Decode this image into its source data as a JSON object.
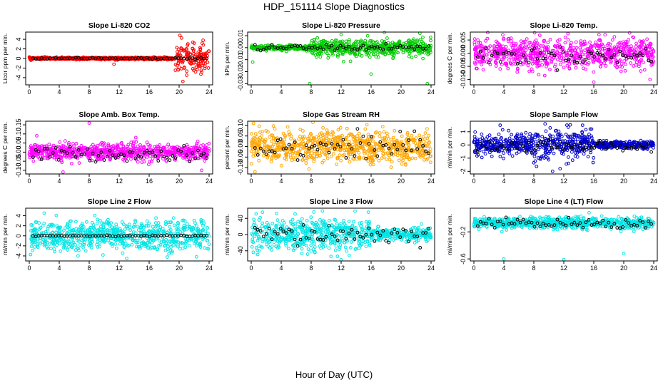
{
  "page": {
    "title": "HDP_151114  Slope Diagnostics",
    "xlabel": "Hour of Day (UTC)"
  },
  "chart_data": [
    {
      "type": "scatter",
      "title": "Slope Li-820 CO2",
      "ylabel": "Licor ppm per min.",
      "xlim": [
        0,
        24
      ],
      "xticks": [
        0,
        4,
        8,
        12,
        16,
        20,
        24
      ],
      "ylim": [
        -5.5,
        5.5
      ],
      "yticks": [
        -4,
        -2,
        0,
        2,
        4
      ],
      "yticklabels": [
        "-4",
        "-2",
        "0",
        "2",
        "4"
      ],
      "color": "#ff0000",
      "spread_regions": [
        {
          "x": [
            0,
            19.5
          ],
          "center": 0,
          "spread": 0.25
        },
        {
          "x": [
            19.5,
            24
          ],
          "center": 0,
          "spread": 3.0
        }
      ],
      "outliers": [
        [
          11.3,
          -1.2
        ],
        [
          20.1,
          4.8
        ],
        [
          20.5,
          -4.8
        ],
        [
          21.0,
          -3.5
        ],
        [
          22.0,
          3.2
        ],
        [
          23.2,
          3.8
        ]
      ],
      "black_series": {
        "x_range": [
          0.5,
          24
        ],
        "center": 0,
        "spread": 0.2
      }
    },
    {
      "type": "scatter",
      "title": "Slope Li-820 Pressure",
      "ylabel": "kPa per min.",
      "xlim": [
        0,
        24
      ],
      "xticks": [
        0,
        4,
        8,
        12,
        16,
        20,
        24
      ],
      "ylim": [
        -0.031,
        0.013
      ],
      "yticks": [
        -0.03,
        -0.02,
        -0.01,
        0.0,
        0.01
      ],
      "yticklabels": [
        "-0.03",
        "-0.02",
        "-0.01",
        "0.00",
        "0.01"
      ],
      "color": "#00cc00",
      "spread_regions": [
        {
          "x": [
            0,
            8
          ],
          "center": 0.0,
          "spread": 0.002
        },
        {
          "x": [
            8,
            24
          ],
          "center": 0.0,
          "spread": 0.008
        }
      ],
      "outliers": [
        [
          0.2,
          -0.012
        ],
        [
          7.8,
          -0.03
        ],
        [
          16.0,
          -0.022
        ],
        [
          22.5,
          0.012
        ],
        [
          23.5,
          -0.03
        ],
        [
          12.0,
          0.011
        ]
      ],
      "black_series": {
        "x_range": [
          0.5,
          24
        ],
        "center": 0.0,
        "spread": 0.003
      }
    },
    {
      "type": "scatter",
      "title": "Slope Li-820 Temp.",
      "ylabel": "degrees C per min.",
      "xlim": [
        0,
        24
      ],
      "xticks": [
        0,
        4,
        8,
        12,
        16,
        20,
        24
      ],
      "ylim": [
        -0.012,
        0.008
      ],
      "yticks": [
        -0.01,
        -0.005,
        0.0,
        0.005
      ],
      "yticklabels": [
        "-0.010",
        "-0.005",
        "0.000",
        "0.005"
      ],
      "color": "#ff00ff",
      "spread_regions": [
        {
          "x": [
            0,
            24
          ],
          "center": 0.0,
          "spread": 0.006
        }
      ],
      "outliers": [
        [
          16.0,
          -0.011
        ],
        [
          23.5,
          -0.01
        ],
        [
          12.2,
          0.006
        ],
        [
          17.5,
          0.007
        ]
      ],
      "black_series": {
        "x_range": [
          0.5,
          24
        ],
        "center": -0.001,
        "spread": 0.004
      }
    },
    {
      "type": "scatter",
      "title": "Slope Amb. Box Temp.",
      "ylabel": "degrees C per min.",
      "xlim": [
        0,
        24
      ],
      "xticks": [
        0,
        4,
        8,
        12,
        16,
        20,
        24
      ],
      "ylim": [
        -0.12,
        0.17
      ],
      "yticks": [
        -0.1,
        -0.05,
        0.0,
        0.05,
        0.1,
        0.15
      ],
      "yticklabels": [
        "-0.10",
        "-0.05",
        "0.00",
        "0.05",
        "0.10",
        "0.15"
      ],
      "color": "#ff00ff",
      "spread_regions": [
        {
          "x": [
            0,
            24
          ],
          "center": 0.0,
          "spread": 0.05
        }
      ],
      "outliers": [
        [
          8.0,
          0.16
        ],
        [
          4.5,
          -0.11
        ],
        [
          23.0,
          -0.1
        ],
        [
          1.0,
          0.09
        ]
      ],
      "black_series": {
        "x_range": [
          0.5,
          24
        ],
        "center": -0.01,
        "spread": 0.05
      }
    },
    {
      "type": "scatter",
      "title": "Slope Gas Stream RH",
      "ylabel": "percent per min.",
      "xlim": [
        0,
        24
      ],
      "xticks": [
        0,
        4,
        8,
        12,
        16,
        20,
        24
      ],
      "ylim": [
        -0.13,
        0.12
      ],
      "yticks": [
        -0.1,
        -0.05,
        0.0,
        0.05,
        0.1
      ],
      "yticklabels": [
        "-0.10",
        "-0.05",
        "0.00",
        "0.05",
        "0.10"
      ],
      "color": "#ffa500",
      "spread_regions": [
        {
          "x": [
            0,
            24
          ],
          "center": 0.0,
          "spread": 0.08
        }
      ],
      "outliers": [
        [
          0.5,
          -0.12
        ],
        [
          0.3,
          0.11
        ]
      ],
      "black_series": {
        "x_range": [
          0.5,
          24
        ],
        "center": 0.0,
        "spread": 0.07
      }
    },
    {
      "type": "scatter",
      "title": "Slope Sample Flow",
      "ylabel": "ml/min per min.",
      "xlim": [
        0,
        24
      ],
      "xticks": [
        0,
        4,
        8,
        12,
        16,
        20,
        24
      ],
      "ylim": [
        -2.2,
        1.8
      ],
      "yticks": [
        -2,
        -1,
        0,
        1
      ],
      "yticklabels": [
        "-2",
        "-1",
        "0",
        "1"
      ],
      "color": "#0000cc",
      "spread_regions": [
        {
          "x": [
            0,
            8
          ],
          "center": 0.0,
          "spread": 0.8
        },
        {
          "x": [
            8,
            16
          ],
          "center": 0.0,
          "spread": 1.2
        },
        {
          "x": [
            16,
            24
          ],
          "center": 0.0,
          "spread": 0.3
        }
      ],
      "outliers": [
        [
          10.5,
          -2.0
        ],
        [
          11.5,
          -1.8
        ],
        [
          3.5,
          1.5
        ],
        [
          9.5,
          1.6
        ],
        [
          14.5,
          1.5
        ]
      ],
      "black_series": {
        "x_range": [
          0.5,
          24
        ],
        "center": -0.1,
        "spread": 0.6
      }
    },
    {
      "type": "scatter",
      "title": "Slope Line 2 Flow",
      "ylabel": "ml/min per min.",
      "xlim": [
        0,
        24
      ],
      "xticks": [
        0,
        4,
        8,
        12,
        16,
        20,
        24
      ],
      "ylim": [
        -5,
        5.5
      ],
      "yticks": [
        -4,
        -2,
        0,
        2,
        4
      ],
      "yticklabels": [
        "-4",
        "-2",
        "0",
        "2",
        "4"
      ],
      "color": "#00e5e5",
      "spread_regions": [
        {
          "x": [
            0,
            24
          ],
          "center": 0.0,
          "spread": 3.2
        }
      ],
      "outliers": [
        [
          2.0,
          4.5
        ],
        [
          6.5,
          -4.0
        ],
        [
          13.0,
          -4.5
        ]
      ],
      "black_series": {
        "x_range": [
          0.5,
          24
        ],
        "center": 0.0,
        "spread": 0.15
      }
    },
    {
      "type": "scatter",
      "title": "Slope Line 3 Flow",
      "ylabel": "ml/min per min.",
      "xlim": [
        0,
        24
      ],
      "xticks": [
        0,
        4,
        8,
        12,
        16,
        20,
        24
      ],
      "ylim": [
        -65,
        65
      ],
      "yticks": [
        -40,
        0,
        40
      ],
      "yticklabels": [
        "-40",
        "0",
        "40"
      ],
      "color": "#00e5e5",
      "spread_regions": [
        {
          "x": [
            0,
            16
          ],
          "center": 0.0,
          "spread": 45
        },
        {
          "x": [
            16,
            24
          ],
          "center": 0.0,
          "spread": 15
        }
      ],
      "outliers": [
        [
          1.5,
          55
        ],
        [
          9.5,
          58
        ],
        [
          12.0,
          -62
        ]
      ],
      "black_series": {
        "x_range": [
          0.5,
          24
        ],
        "center": 0.0,
        "spread": 35
      }
    },
    {
      "type": "scatter",
      "title": "Slope Line 4 (LT) Flow",
      "ylabel": "ml/min per min.",
      "xlim": [
        0,
        24
      ],
      "xticks": [
        0,
        4,
        8,
        12,
        16,
        20,
        24
      ],
      "ylim": [
        -0.63,
        0.15
      ],
      "yticks": [
        -0.6,
        -0.2
      ],
      "yticklabels": [
        "-0.6",
        "-0.2"
      ],
      "color": "#00e5e5",
      "spread_regions": [
        {
          "x": [
            0,
            24
          ],
          "center": -0.07,
          "spread": 0.09
        }
      ],
      "outliers": [
        [
          4.0,
          -0.6
        ],
        [
          12.0,
          -0.61
        ],
        [
          20.0,
          -0.52
        ]
      ],
      "black_series": {
        "x_range": [
          0.5,
          24
        ],
        "center": -0.08,
        "spread": 0.09
      }
    }
  ]
}
